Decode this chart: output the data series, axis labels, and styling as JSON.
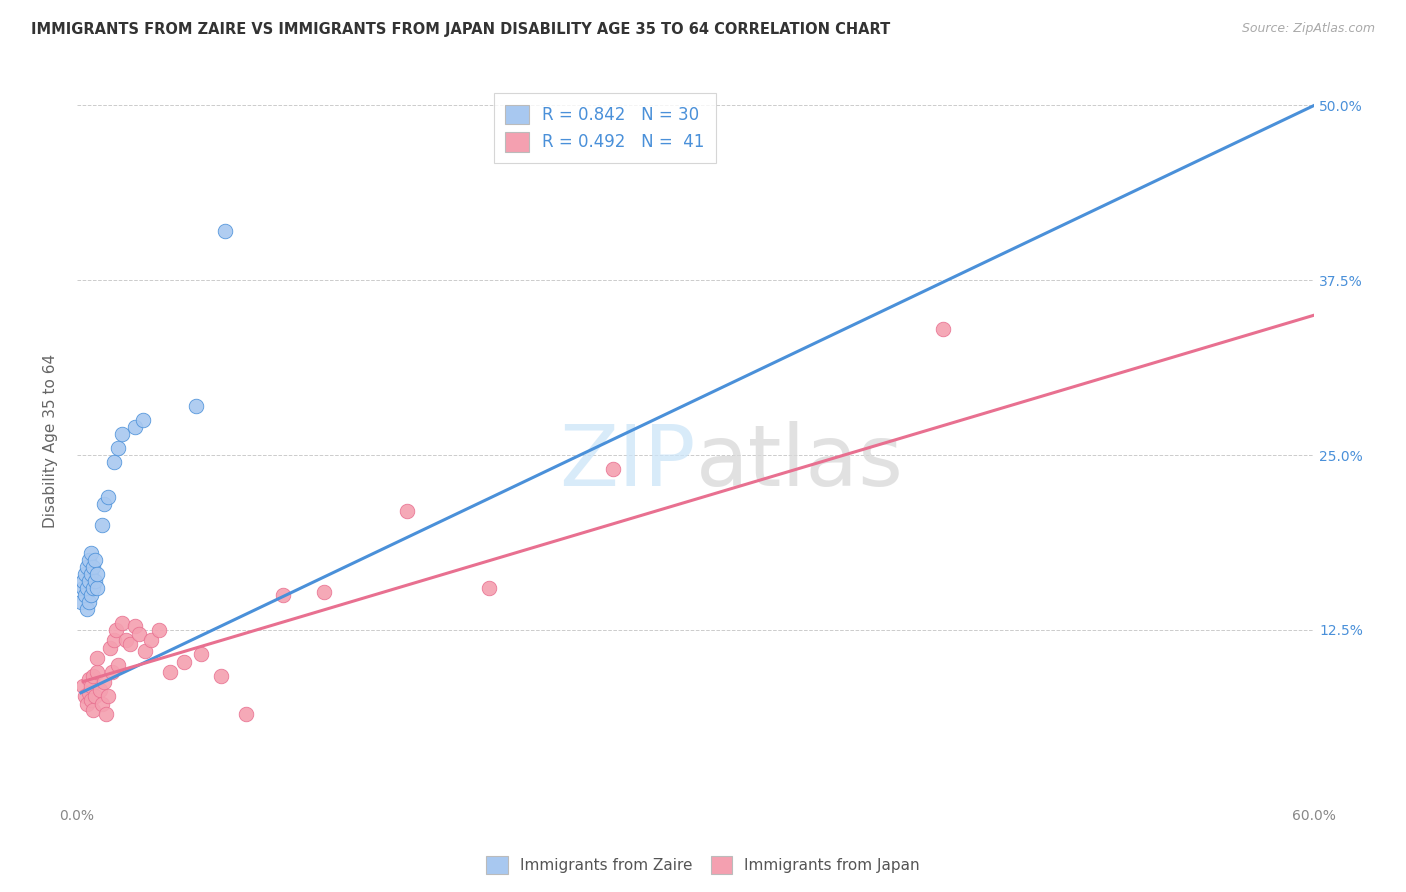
{
  "title": "IMMIGRANTS FROM ZAIRE VS IMMIGRANTS FROM JAPAN DISABILITY AGE 35 TO 64 CORRELATION CHART",
  "source": "Source: ZipAtlas.com",
  "ylabel": "Disability Age 35 to 64",
  "xmin": 0.0,
  "xmax": 0.6,
  "ymin": 0.0,
  "ymax": 0.52,
  "xticks": [
    0.0,
    0.1,
    0.2,
    0.3,
    0.4,
    0.5,
    0.6
  ],
  "yticks": [
    0.0,
    0.125,
    0.25,
    0.375,
    0.5
  ],
  "ytick_labels": [
    "",
    "12.5%",
    "25.0%",
    "37.5%",
    "50.0%"
  ],
  "xtick_labels": [
    "0.0%",
    "",
    "",
    "",
    "",
    "",
    "60.0%"
  ],
  "zaire_R": 0.842,
  "zaire_N": 30,
  "japan_R": 0.492,
  "japan_N": 41,
  "zaire_color": "#a8c8f0",
  "japan_color": "#f4a0b0",
  "trendline_zaire_color": "#4a90d9",
  "trendline_japan_color": "#e87090",
  "background_color": "#ffffff",
  "watermark_zip": "ZIP",
  "watermark_atlas": "atlas",
  "zaire_x": [
    0.002,
    0.003,
    0.003,
    0.004,
    0.004,
    0.005,
    0.005,
    0.005,
    0.006,
    0.006,
    0.006,
    0.007,
    0.007,
    0.007,
    0.008,
    0.008,
    0.009,
    0.009,
    0.01,
    0.01,
    0.012,
    0.013,
    0.015,
    0.018,
    0.02,
    0.022,
    0.028,
    0.032,
    0.058,
    0.072
  ],
  "zaire_y": [
    0.145,
    0.155,
    0.16,
    0.15,
    0.165,
    0.14,
    0.155,
    0.17,
    0.145,
    0.16,
    0.175,
    0.15,
    0.165,
    0.18,
    0.155,
    0.17,
    0.16,
    0.175,
    0.155,
    0.165,
    0.2,
    0.215,
    0.22,
    0.245,
    0.255,
    0.265,
    0.27,
    0.275,
    0.285,
    0.41
  ],
  "japan_x": [
    0.003,
    0.004,
    0.005,
    0.006,
    0.006,
    0.007,
    0.007,
    0.008,
    0.008,
    0.009,
    0.01,
    0.01,
    0.011,
    0.012,
    0.013,
    0.014,
    0.015,
    0.016,
    0.017,
    0.018,
    0.019,
    0.02,
    0.022,
    0.024,
    0.026,
    0.028,
    0.03,
    0.033,
    0.036,
    0.04,
    0.045,
    0.052,
    0.06,
    0.07,
    0.082,
    0.1,
    0.12,
    0.16,
    0.2,
    0.26,
    0.42
  ],
  "japan_y": [
    0.085,
    0.078,
    0.072,
    0.08,
    0.09,
    0.075,
    0.085,
    0.068,
    0.092,
    0.078,
    0.095,
    0.105,
    0.082,
    0.072,
    0.088,
    0.065,
    0.078,
    0.112,
    0.095,
    0.118,
    0.125,
    0.1,
    0.13,
    0.118,
    0.115,
    0.128,
    0.122,
    0.11,
    0.118,
    0.125,
    0.095,
    0.102,
    0.108,
    0.092,
    0.065,
    0.15,
    0.152,
    0.21,
    0.155,
    0.24,
    0.34
  ],
  "zaire_trendline_x": [
    0.002,
    0.6
  ],
  "zaire_trendline_y": [
    0.08,
    0.5
  ],
  "japan_trendline_x": [
    0.003,
    0.6
  ],
  "japan_trendline_y": [
    0.088,
    0.35
  ]
}
